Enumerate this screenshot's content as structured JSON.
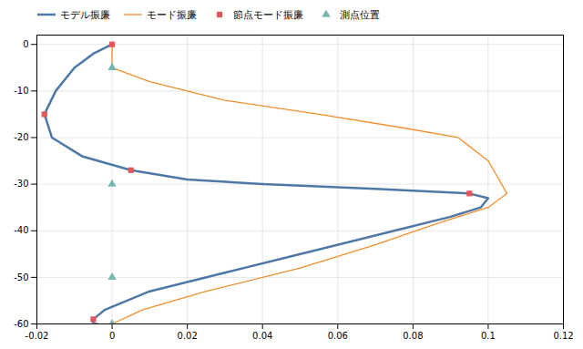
{
  "chart_data": {
    "type": "line",
    "xlim": [
      -0.02,
      0.12
    ],
    "ylim": [
      -60,
      2
    ],
    "xticks": [
      -0.02,
      0,
      0.02,
      0.04,
      0.06,
      0.08,
      0.1,
      0.12
    ],
    "yticks": [
      0,
      -10,
      -20,
      -30,
      -40,
      -50,
      -60
    ],
    "grid": true,
    "legend": "upper left",
    "series": [
      {
        "name": "モデル振廉",
        "type": "line",
        "x": [
          0.0,
          -0.005,
          -0.01,
          -0.015,
          -0.018,
          -0.016,
          -0.008,
          0.005,
          0.02,
          0.04,
          0.07,
          0.095,
          0.1,
          0.098,
          0.09,
          0.075,
          0.055,
          0.03,
          0.01,
          -0.002,
          -0.005,
          -0.005,
          -0.004
        ],
        "values": [
          0,
          -2,
          -5,
          -10,
          -15,
          -20,
          -24,
          -27,
          -29,
          -30,
          -31,
          -32,
          -33,
          -35,
          -37,
          -40,
          -44,
          -49,
          -53,
          -57,
          -59,
          -60,
          -60
        ]
      },
      {
        "name": "モード振廉",
        "type": "line",
        "x": [
          0.0,
          0.0,
          0.01,
          0.03,
          0.055,
          0.078,
          0.092,
          0.1,
          0.105,
          0.1,
          0.088,
          0.07,
          0.05,
          0.025,
          0.008,
          0.0,
          0.0
        ],
        "values": [
          0,
          -5,
          -8,
          -12,
          -15,
          -18,
          -20,
          -25,
          -32,
          -35,
          -38,
          -43,
          -48,
          -53,
          -57,
          -60,
          -60
        ]
      },
      {
        "name": "節点モード振廉",
        "type": "scatter",
        "marker": "square",
        "x": [
          -0.018,
          -0.005,
          0.005,
          0.095,
          0.0
        ],
        "values": [
          -15,
          -59,
          -27,
          -32,
          0
        ]
      },
      {
        "name": "測点位置",
        "type": "scatter",
        "marker": "triangle",
        "x": [
          0.0,
          0.0,
          0.0,
          0.0
        ],
        "values": [
          -5,
          -30,
          -50,
          -60
        ]
      }
    ]
  }
}
